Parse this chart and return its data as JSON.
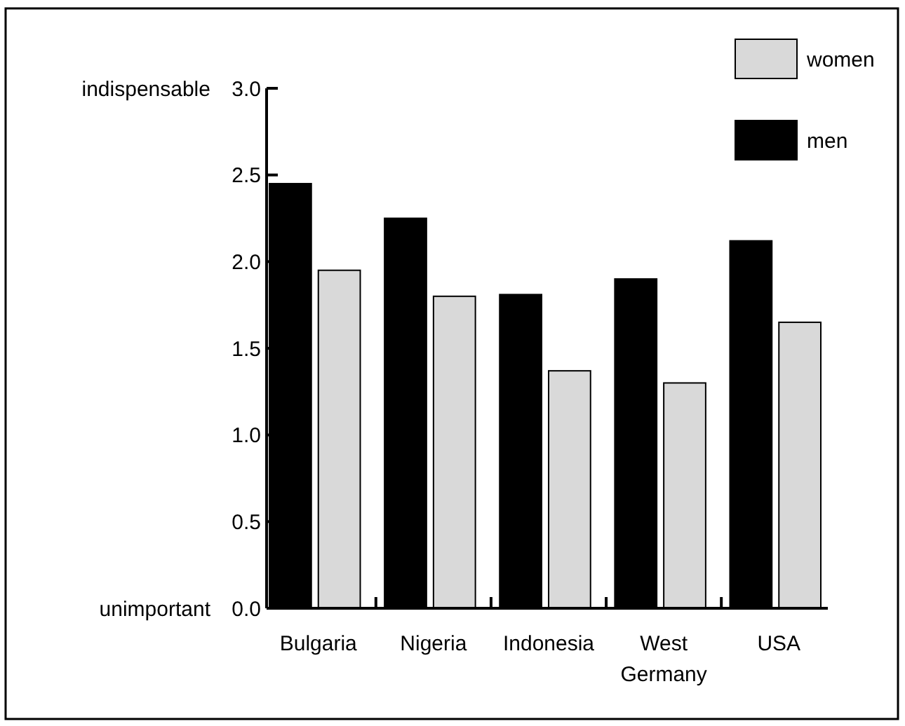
{
  "chart_data": {
    "type": "bar",
    "categories": [
      "Bulgaria",
      "Nigeria",
      "Indonesia",
      "West Germany",
      "USA"
    ],
    "series": [
      {
        "name": "men",
        "color": "#000000",
        "values": [
          2.45,
          2.25,
          1.81,
          1.9,
          2.12
        ]
      },
      {
        "name": "women",
        "color": "#d9d9d9",
        "values": [
          1.95,
          1.8,
          1.37,
          1.3,
          1.65
        ]
      }
    ],
    "ylim": [
      0,
      3
    ],
    "yticks": [
      {
        "value": 0,
        "label": "0.0"
      },
      {
        "value": 0.5,
        "label": "0.5"
      },
      {
        "value": 1,
        "label": "1.0"
      },
      {
        "value": 1.5,
        "label": "1.5"
      },
      {
        "value": 2,
        "label": "2.0"
      },
      {
        "value": 2.5,
        "label": "2.5"
      },
      {
        "value": 3,
        "label": "3.0"
      }
    ],
    "annotations": [
      "indispensable",
      "unimportant"
    ],
    "legend": "top right",
    "grid": false
  }
}
